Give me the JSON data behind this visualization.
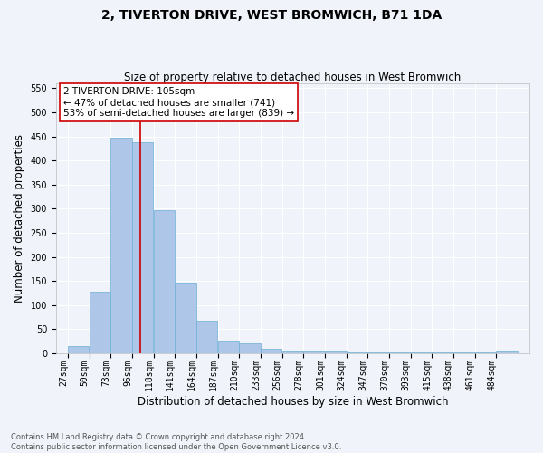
{
  "title": "2, TIVERTON DRIVE, WEST BROMWICH, B71 1DA",
  "subtitle": "Size of property relative to detached houses in West Bromwich",
  "xlabel": "Distribution of detached houses by size in West Bromwich",
  "ylabel": "Number of detached properties",
  "bar_labels": [
    "27sqm",
    "50sqm",
    "73sqm",
    "96sqm",
    "118sqm",
    "141sqm",
    "164sqm",
    "187sqm",
    "210sqm",
    "233sqm",
    "256sqm",
    "278sqm",
    "301sqm",
    "324sqm",
    "347sqm",
    "370sqm",
    "393sqm",
    "415sqm",
    "438sqm",
    "461sqm",
    "484sqm"
  ],
  "bar_values": [
    15,
    127,
    447,
    438,
    297,
    146,
    67,
    27,
    20,
    10,
    5,
    5,
    5,
    1,
    1,
    1,
    1,
    1,
    1,
    1,
    5
  ],
  "bar_color": "#aec6e8",
  "bar_edge_color": "#6aafd6",
  "annotation_text": "2 TIVERTON DRIVE: 105sqm\n← 47% of detached houses are smaller (741)\n53% of semi-detached houses are larger (839) →",
  "vline_x": 105,
  "vline_color": "#cc0000",
  "annotation_box_color": "#ffffff",
  "annotation_box_edge": "#cc0000",
  "ylim": [
    0,
    560
  ],
  "yticks": [
    0,
    50,
    100,
    150,
    200,
    250,
    300,
    350,
    400,
    450,
    500,
    550
  ],
  "footnote": "Contains HM Land Registry data © Crown copyright and database right 2024.\nContains public sector information licensed under the Open Government Licence v3.0.",
  "bg_color": "#f0f4fa",
  "grid_color": "#ffffff",
  "title_fontsize": 10,
  "subtitle_fontsize": 8.5,
  "axis_label_fontsize": 8.5,
  "tick_fontsize": 7,
  "annotation_fontsize": 7.5,
  "footnote_fontsize": 6,
  "bin_width": 23
}
